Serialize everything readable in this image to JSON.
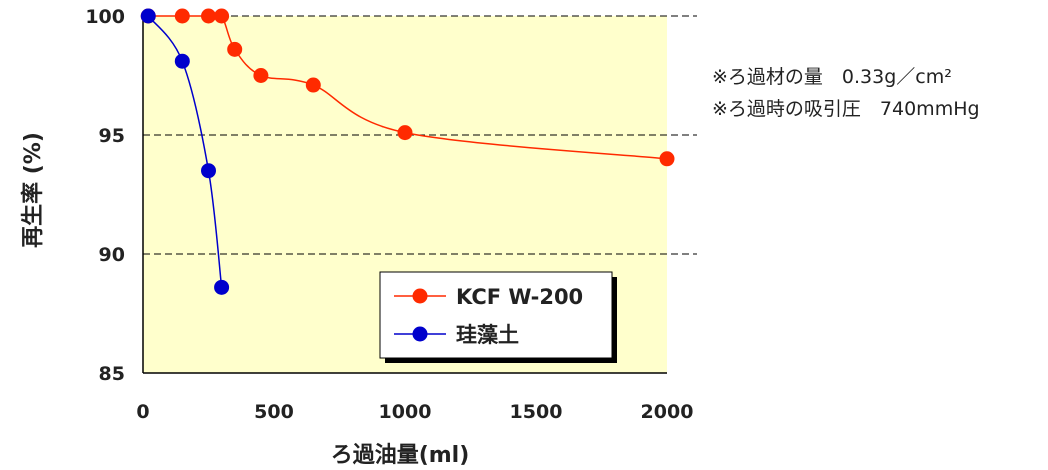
{
  "chart_data": {
    "type": "line",
    "title": "",
    "xlabel": "ろ過油量(ml)",
    "ylabel": "再生率 (%)",
    "xlim": [
      0,
      2000
    ],
    "ylim": [
      85,
      100
    ],
    "xticks": [
      "0",
      "500",
      "1000",
      "1500",
      "2000"
    ],
    "yticks": [
      "85",
      "90",
      "95",
      "100"
    ],
    "grid": "horizontal-dashed",
    "legend_position": "bottom-right",
    "series": [
      {
        "name": "KCF W-200",
        "color": "#ff2a00",
        "x": [
          20,
          150,
          250,
          300,
          350,
          450,
          650,
          1000,
          2000
        ],
        "y": [
          100,
          100,
          100,
          100,
          98.6,
          97.5,
          97.1,
          95.1,
          94.0
        ]
      },
      {
        "name": "珪藻土",
        "color": "#0000cc",
        "x": [
          20,
          150,
          250,
          300
        ],
        "y": [
          100,
          98.1,
          93.5,
          88.6
        ]
      }
    ]
  },
  "notes": [
    "※ろ過材の量　0.33g／cm²",
    "※ろ過時の吸引圧　740mmHg"
  ],
  "colors": {
    "plot_background": "#ffffcc",
    "grid": "#000000"
  }
}
